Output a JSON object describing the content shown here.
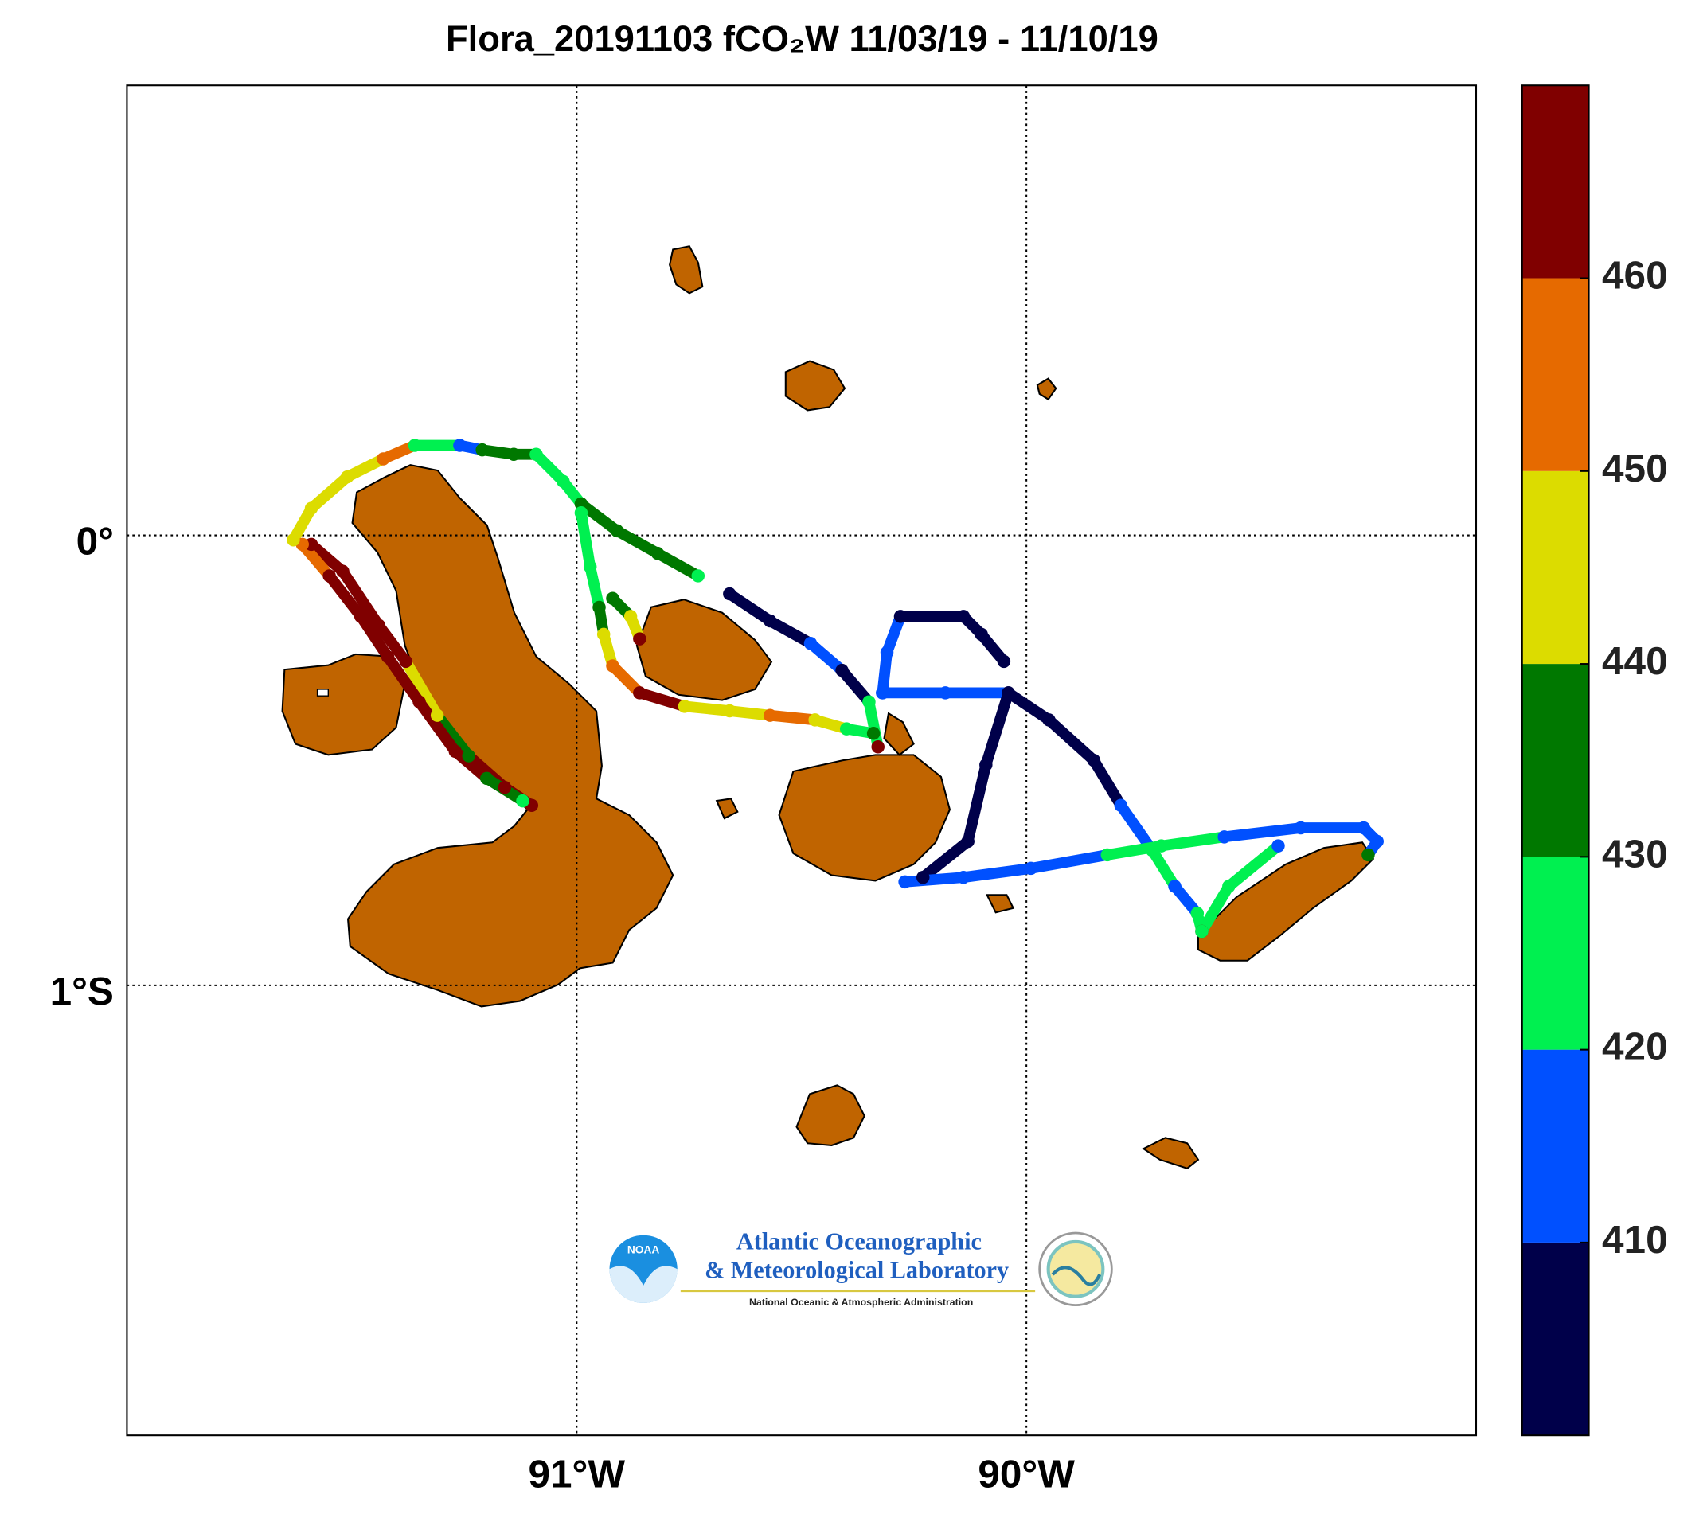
{
  "chart_data": {
    "type": "map",
    "title": "Flora_20191103 fCO₂W 11/03/19 - 11/10/19",
    "xlim": [
      -92,
      -89
    ],
    "ylim": [
      -2,
      1
    ],
    "xticks": [
      {
        "value": -91,
        "label": "91°W"
      },
      {
        "value": -90,
        "label": "90°W"
      }
    ],
    "yticks": [
      {
        "value": 0,
        "label": "0°"
      },
      {
        "value": -1,
        "label": "1°S"
      }
    ],
    "grid": true,
    "colorbar": {
      "clim": [
        400,
        470
      ],
      "ticks": [
        410,
        420,
        430,
        440,
        450,
        460
      ],
      "colors": [
        "#00004a",
        "#0050ff",
        "#00f050",
        "#007800",
        "#dcdc00",
        "#e66a00",
        "#800000"
      ]
    },
    "track": [
      {
        "lon": [
          -91.1,
          -91.16,
          -91.24,
          -91.31,
          -91.38,
          -91.44,
          -91.52,
          -91.59
        ],
        "lat": [
          -0.6,
          -0.56,
          -0.49,
          -0.4,
          -0.28,
          -0.2,
          -0.08,
          -0.02
        ],
        "fco2": [
          465,
          465,
          435,
          445,
          465,
          465,
          465,
          465
        ]
      },
      {
        "lon": [
          -91.61,
          -91.55,
          -91.48,
          -91.42,
          -91.35,
          -91.27,
          -91.2,
          -91.12
        ],
        "lat": [
          -0.02,
          -0.09,
          -0.18,
          -0.27,
          -0.37,
          -0.48,
          -0.54,
          -0.59
        ],
        "fco2": [
          455,
          465,
          465,
          465,
          465,
          465,
          435,
          425
        ]
      },
      {
        "lon": [
          -91.63,
          -91.59,
          -91.51,
          -91.43,
          -91.36,
          -91.26,
          -91.21,
          -91.14,
          -91.09,
          -91.03,
          -90.99,
          -90.91,
          -90.82,
          -90.73
        ],
        "lat": [
          -0.01,
          0.06,
          0.13,
          0.17,
          0.2,
          0.2,
          0.19,
          0.18,
          0.18,
          0.12,
          0.07,
          0.01,
          -0.04,
          -0.09
        ],
        "fco2": [
          445,
          445,
          445,
          455,
          420,
          415,
          435,
          435,
          425,
          425,
          435,
          435,
          435,
          425
        ]
      },
      {
        "lon": [
          -90.99,
          -90.97,
          -90.95,
          -90.94,
          -90.92,
          -90.86,
          -90.76,
          -90.66,
          -90.57,
          -90.47,
          -90.4,
          -90.34
        ],
        "lat": [
          0.05,
          -0.07,
          -0.16,
          -0.22,
          -0.29,
          -0.35,
          -0.38,
          -0.39,
          -0.4,
          -0.41,
          -0.43,
          -0.44
        ],
        "fco2": [
          425,
          425,
          435,
          445,
          455,
          465,
          445,
          445,
          455,
          445,
          425,
          435
        ]
      },
      {
        "lon": [
          -90.92,
          -90.88,
          -90.86
        ],
        "lat": [
          -0.14,
          -0.18,
          -0.23
        ],
        "fco2": [
          435,
          445,
          465
        ]
      },
      {
        "lon": [
          -90.66,
          -90.57,
          -90.48,
          -90.41,
          -90.35,
          -90.33
        ],
        "lat": [
          -0.13,
          -0.19,
          -0.24,
          -0.3,
          -0.37,
          -0.47
        ],
        "fco2": [
          405,
          405,
          415,
          405,
          425,
          465
        ]
      },
      {
        "lon": [
          -90.32,
          -90.31,
          -90.28,
          -90.14,
          -90.1,
          -90.05
        ],
        "lat": [
          -0.35,
          -0.26,
          -0.18,
          -0.18,
          -0.22,
          -0.28
        ],
        "fco2": [
          415,
          415,
          405,
          405,
          405,
          405
        ]
      },
      {
        "lon": [
          -90.32,
          -90.18,
          -90.04,
          -89.95,
          -89.85,
          -89.79,
          -89.72,
          -89.67,
          -89.62,
          -89.61
        ],
        "lat": [
          -0.35,
          -0.35,
          -0.35,
          -0.41,
          -0.5,
          -0.6,
          -0.7,
          -0.78,
          -0.84,
          -0.88
        ],
        "fco2": [
          415,
          415,
          405,
          405,
          405,
          415,
          425,
          415,
          425,
          465
        ]
      },
      {
        "lon": [
          -90.04,
          -90.09,
          -90.13,
          -90.23
        ],
        "lat": [
          -0.35,
          -0.51,
          -0.68,
          -0.76
        ],
        "fco2": [
          405,
          405,
          405,
          405
        ]
      },
      {
        "lon": [
          -90.27,
          -90.14,
          -89.99,
          -89.82,
          -89.7,
          -89.56,
          -89.39,
          -89.25,
          -89.22,
          -89.24
        ],
        "lat": [
          -0.77,
          -0.76,
          -0.74,
          -0.71,
          -0.69,
          -0.67,
          -0.65,
          -0.65,
          -0.68,
          -0.71
        ],
        "fco2": [
          415,
          415,
          415,
          425,
          425,
          415,
          415,
          415,
          415,
          435
        ]
      },
      {
        "lon": [
          -89.61,
          -89.55,
          -89.44
        ],
        "lat": [
          -0.88,
          -0.78,
          -0.69
        ],
        "fco2": [
          425,
          425,
          415
        ]
      }
    ]
  },
  "logo": {
    "badge": "NOAA",
    "line1": "Atlantic Oceanographic",
    "line2": "& Meteorological Laboratory",
    "line3": "National Oceanic & Atmospheric Administration"
  }
}
